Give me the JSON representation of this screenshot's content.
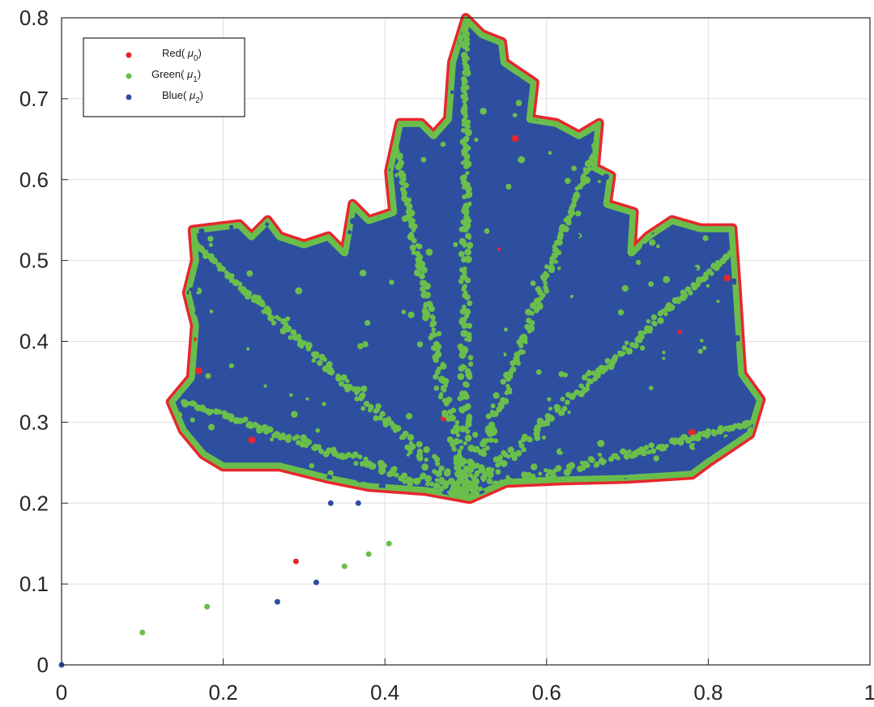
{
  "chart_data": {
    "type": "scatter",
    "title": "",
    "xlabel": "",
    "ylabel": "",
    "xlim": [
      0,
      1
    ],
    "ylim": [
      0,
      0.8
    ],
    "grid": true,
    "legend_position": "top-left",
    "x_ticks": [
      "0",
      "0.2",
      "0.4",
      "0.6",
      "0.8",
      "1"
    ],
    "y_ticks": [
      "0",
      "0.1",
      "0.2",
      "0.3",
      "0.4",
      "0.5",
      "0.6",
      "0.7",
      "0.8"
    ],
    "legend": [
      {
        "name": "Red",
        "mu": "μ",
        "sub": "0",
        "color": "#e8262d"
      },
      {
        "name": "Green",
        "mu": "μ",
        "sub": "1",
        "color": "#6abf4b"
      },
      {
        "name": "Blue",
        "mu": "μ",
        "sub": "2",
        "color": "#2e4fa0"
      }
    ],
    "outlier_points": [
      {
        "x": 0.0,
        "y": 0.0,
        "series": "Blue"
      },
      {
        "x": 0.1,
        "y": 0.04,
        "series": "Green"
      },
      {
        "x": 0.18,
        "y": 0.072,
        "series": "Green"
      },
      {
        "x": 0.267,
        "y": 0.078,
        "series": "Blue"
      },
      {
        "x": 0.29,
        "y": 0.128,
        "series": "Red"
      },
      {
        "x": 0.315,
        "y": 0.102,
        "series": "Blue"
      },
      {
        "x": 0.333,
        "y": 0.2,
        "series": "Blue"
      },
      {
        "x": 0.35,
        "y": 0.122,
        "series": "Green"
      },
      {
        "x": 0.367,
        "y": 0.2,
        "series": "Blue"
      },
      {
        "x": 0.38,
        "y": 0.137,
        "series": "Green"
      },
      {
        "x": 0.405,
        "y": 0.15,
        "series": "Green"
      }
    ],
    "leaf_outline": [
      [
        0.135,
        0.325
      ],
      [
        0.16,
        0.355
      ],
      [
        0.165,
        0.42
      ],
      [
        0.155,
        0.46
      ],
      [
        0.165,
        0.5
      ],
      [
        0.162,
        0.538
      ],
      [
        0.22,
        0.545
      ],
      [
        0.235,
        0.53
      ],
      [
        0.255,
        0.55
      ],
      [
        0.27,
        0.53
      ],
      [
        0.3,
        0.52
      ],
      [
        0.33,
        0.53
      ],
      [
        0.35,
        0.51
      ],
      [
        0.36,
        0.57
      ],
      [
        0.38,
        0.55
      ],
      [
        0.41,
        0.56
      ],
      [
        0.405,
        0.61
      ],
      [
        0.418,
        0.67
      ],
      [
        0.445,
        0.67
      ],
      [
        0.46,
        0.655
      ],
      [
        0.478,
        0.675
      ],
      [
        0.483,
        0.745
      ],
      [
        0.5,
        0.8
      ],
      [
        0.52,
        0.78
      ],
      [
        0.545,
        0.77
      ],
      [
        0.548,
        0.745
      ],
      [
        0.585,
        0.72
      ],
      [
        0.58,
        0.675
      ],
      [
        0.612,
        0.67
      ],
      [
        0.64,
        0.655
      ],
      [
        0.665,
        0.67
      ],
      [
        0.66,
        0.615
      ],
      [
        0.68,
        0.605
      ],
      [
        0.675,
        0.57
      ],
      [
        0.708,
        0.56
      ],
      [
        0.705,
        0.51
      ],
      [
        0.725,
        0.53
      ],
      [
        0.755,
        0.55
      ],
      [
        0.79,
        0.54
      ],
      [
        0.83,
        0.54
      ],
      [
        0.835,
        0.47
      ],
      [
        0.84,
        0.39
      ],
      [
        0.842,
        0.36
      ],
      [
        0.865,
        0.328
      ],
      [
        0.852,
        0.285
      ],
      [
        0.8,
        0.25
      ],
      [
        0.78,
        0.235
      ],
      [
        0.7,
        0.23
      ],
      [
        0.62,
        0.228
      ],
      [
        0.55,
        0.225
      ],
      [
        0.505,
        0.205
      ],
      [
        0.45,
        0.215
      ],
      [
        0.38,
        0.22
      ],
      [
        0.33,
        0.23
      ],
      [
        0.27,
        0.245
      ],
      [
        0.2,
        0.245
      ],
      [
        0.175,
        0.26
      ],
      [
        0.15,
        0.29
      ]
    ],
    "veins": [
      {
        "series": "Green",
        "points": [
          [
            0.5,
            0.21
          ],
          [
            0.5,
            0.79
          ]
        ]
      },
      {
        "series": "Green",
        "points": [
          [
            0.5,
            0.21
          ],
          [
            0.165,
            0.52
          ]
        ]
      },
      {
        "series": "Green",
        "points": [
          [
            0.5,
            0.21
          ],
          [
            0.85,
            0.53
          ]
        ]
      },
      {
        "series": "Green",
        "points": [
          [
            0.5,
            0.21
          ],
          [
            0.15,
            0.325
          ]
        ]
      },
      {
        "series": "Green",
        "points": [
          [
            0.5,
            0.21
          ],
          [
            0.855,
            0.3
          ]
        ]
      },
      {
        "series": "Green",
        "points": [
          [
            0.5,
            0.21
          ],
          [
            0.41,
            0.66
          ]
        ]
      },
      {
        "series": "Green",
        "points": [
          [
            0.5,
            0.21
          ],
          [
            0.66,
            0.64
          ]
        ]
      }
    ]
  }
}
